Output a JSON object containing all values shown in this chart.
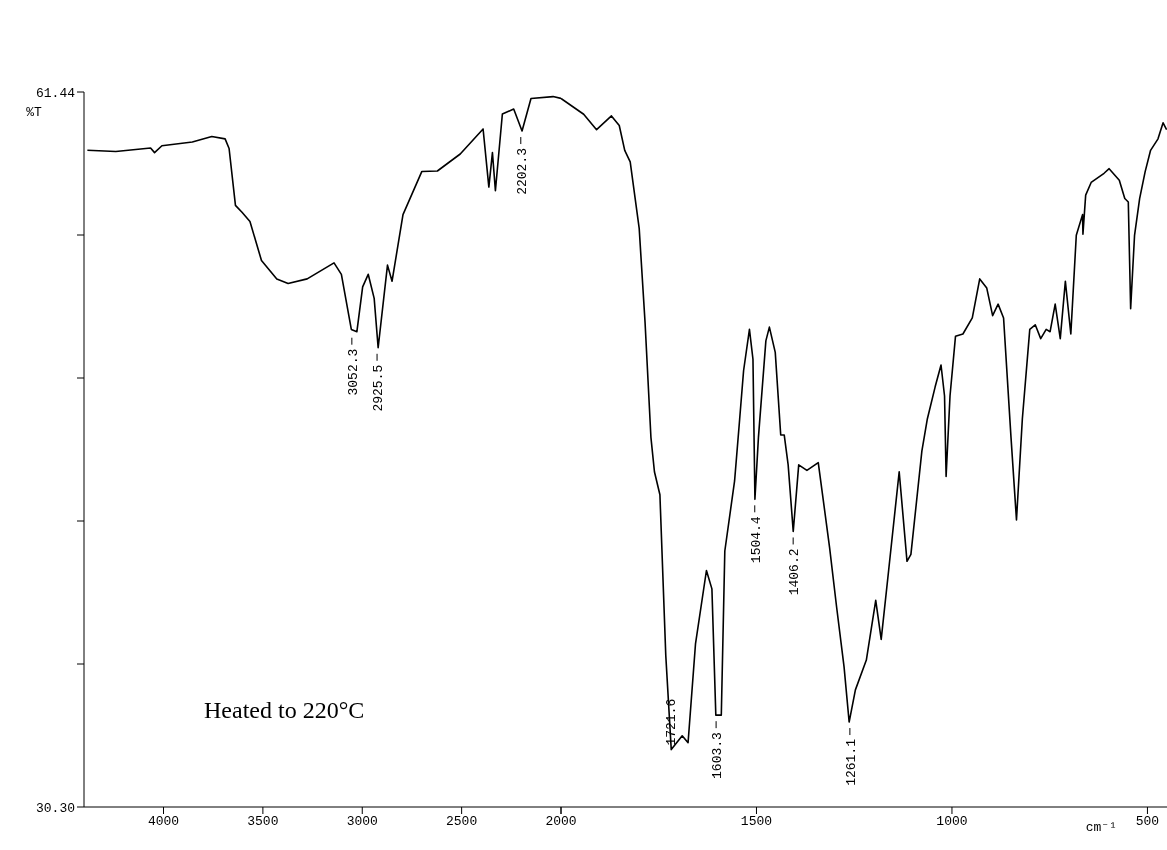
{
  "chart_data": [
    {
      "type": "line",
      "ylabel": "%T",
      "xlim": [
        4400,
        2000
      ],
      "xticks": [
        4000,
        3500,
        3000,
        2500,
        {
          "value": 2000,
          "label": null
        }
      ],
      "ylim": [
        30.3,
        61.44
      ],
      "yticks": [
        {
          "value": 30.3,
          "label": "30.30"
        },
        {
          "value": 36.528,
          "label": null
        },
        {
          "value": 42.756,
          "label": null
        },
        {
          "value": 48.984,
          "label": null
        },
        {
          "value": 55.212,
          "label": null
        },
        {
          "value": 61.44,
          "label": "61.44"
        }
      ],
      "x": [
        4383,
        4240,
        4065,
        4045,
        4008,
        3855,
        3757,
        3690,
        3670,
        3638,
        3605,
        3565,
        3507,
        3430,
        3373,
        3277,
        3142,
        3105,
        3055,
        3027,
        2998,
        2970,
        2940,
        2920,
        2892,
        2873,
        2850,
        2795,
        2700,
        2622,
        2507,
        2392,
        2363,
        2345,
        2330,
        2295,
        2238,
        2196,
        2151,
        2040,
        2000
      ],
      "series": [
        {
          "color": "#000000",
          "values": [
            58.9,
            58.85,
            59.0,
            58.8,
            59.1,
            59.26,
            59.5,
            59.4,
            58.98,
            56.5,
            56.2,
            55.8,
            54.1,
            53.3,
            53.1,
            53.3,
            54.0,
            53.5,
            51.1,
            51.0,
            52.95,
            53.5,
            52.45,
            50.3,
            52.45,
            53.9,
            53.2,
            56.1,
            57.98,
            58.0,
            58.74,
            59.83,
            57.3,
            58.8,
            57.14,
            60.48,
            60.7,
            59.74,
            61.16,
            61.24,
            61.16
          ]
        }
      ],
      "annotations": [
        "Heated to 220°C",
        {
          "text": "3052.3",
          "x": 3052.3,
          "y": 51.0
        },
        {
          "text": "2925.5",
          "x": 2925.5,
          "y": 50.3
        },
        {
          "text": "2202.3",
          "x": 2202.3,
          "y": 59.74
        }
      ],
      "grid": false,
      "marker": "none",
      "line_style": "solid"
    },
    {
      "type": "line",
      "xlabel": "cm⁻¹",
      "xlim": [
        2000,
        450
      ],
      "xticks": [
        {
          "value": 2000,
          "label": "2000"
        },
        1500,
        1000,
        500
      ],
      "ylim": [
        30.3,
        61.44
      ],
      "tick_labels": "x",
      "x": [
        2000,
        1942,
        1909,
        1871,
        1851,
        1837,
        1823,
        1800,
        1785,
        1770,
        1761,
        1747,
        1732,
        1718,
        1690,
        1675,
        1656,
        1628,
        1614,
        1604,
        1590,
        1581,
        1556,
        1543,
        1533,
        1518,
        1509,
        1504,
        1495,
        1476,
        1467,
        1452,
        1438,
        1429,
        1419,
        1406,
        1392,
        1371,
        1342,
        1313,
        1295,
        1276,
        1263,
        1247,
        1219,
        1195,
        1181,
        1162,
        1135,
        1115,
        1105,
        1077,
        1063,
        1043,
        1028,
        1019,
        1015,
        1005,
        991,
        972,
        948,
        929,
        911,
        896,
        882,
        868,
        849,
        835,
        820,
        801,
        787,
        773,
        759,
        749,
        736,
        723,
        710,
        696,
        682,
        666,
        665,
        658,
        644,
        611,
        598,
        572,
        558,
        549,
        543,
        533,
        520,
        506,
        492,
        473,
        460,
        451
      ],
      "series": [
        {
          "color": "#000000",
          "values": [
            61.16,
            60.47,
            59.8,
            60.4,
            59.98,
            58.9,
            58.4,
            55.5,
            51.4,
            46.4,
            44.9,
            43.9,
            36.9,
            32.8,
            33.4,
            33.1,
            37.4,
            40.6,
            39.8,
            34.3,
            34.3,
            41.45,
            44.5,
            47.2,
            49.3,
            51.1,
            49.8,
            43.7,
            46.4,
            50.6,
            51.2,
            50.1,
            46.5,
            46.5,
            45.2,
            42.3,
            45.2,
            44.96,
            45.3,
            41.6,
            39.0,
            36.4,
            34.0,
            35.4,
            36.7,
            39.3,
            37.6,
            40.6,
            44.9,
            41.0,
            41.3,
            45.8,
            47.2,
            48.6,
            49.55,
            48.2,
            44.7,
            48.2,
            50.8,
            50.9,
            51.6,
            53.3,
            52.9,
            51.7,
            52.2,
            51.6,
            46.4,
            42.8,
            47.2,
            51.1,
            51.3,
            50.7,
            51.1,
            51.0,
            52.2,
            50.7,
            53.2,
            50.9,
            55.2,
            56.1,
            55.25,
            56.95,
            57.5,
            57.9,
            58.1,
            57.6,
            56.8,
            56.65,
            52.0,
            55.2,
            56.8,
            57.96,
            58.9,
            59.4,
            60.1,
            59.8
          ]
        }
      ],
      "annotations": [
        {
          "text": "1721.6",
          "x": 1721.6,
          "y": 32.8
        },
        {
          "text": "1603.3",
          "x": 1603.3,
          "y": 34.3
        },
        {
          "text": "1504.4",
          "x": 1504.4,
          "y": 43.7
        },
        {
          "text": "1406.2",
          "x": 1406.2,
          "y": 42.3
        },
        {
          "text": "1261.1",
          "x": 1261.1,
          "y": 34.0
        }
      ],
      "grid": false,
      "marker": "none",
      "line_style": "solid"
    }
  ]
}
